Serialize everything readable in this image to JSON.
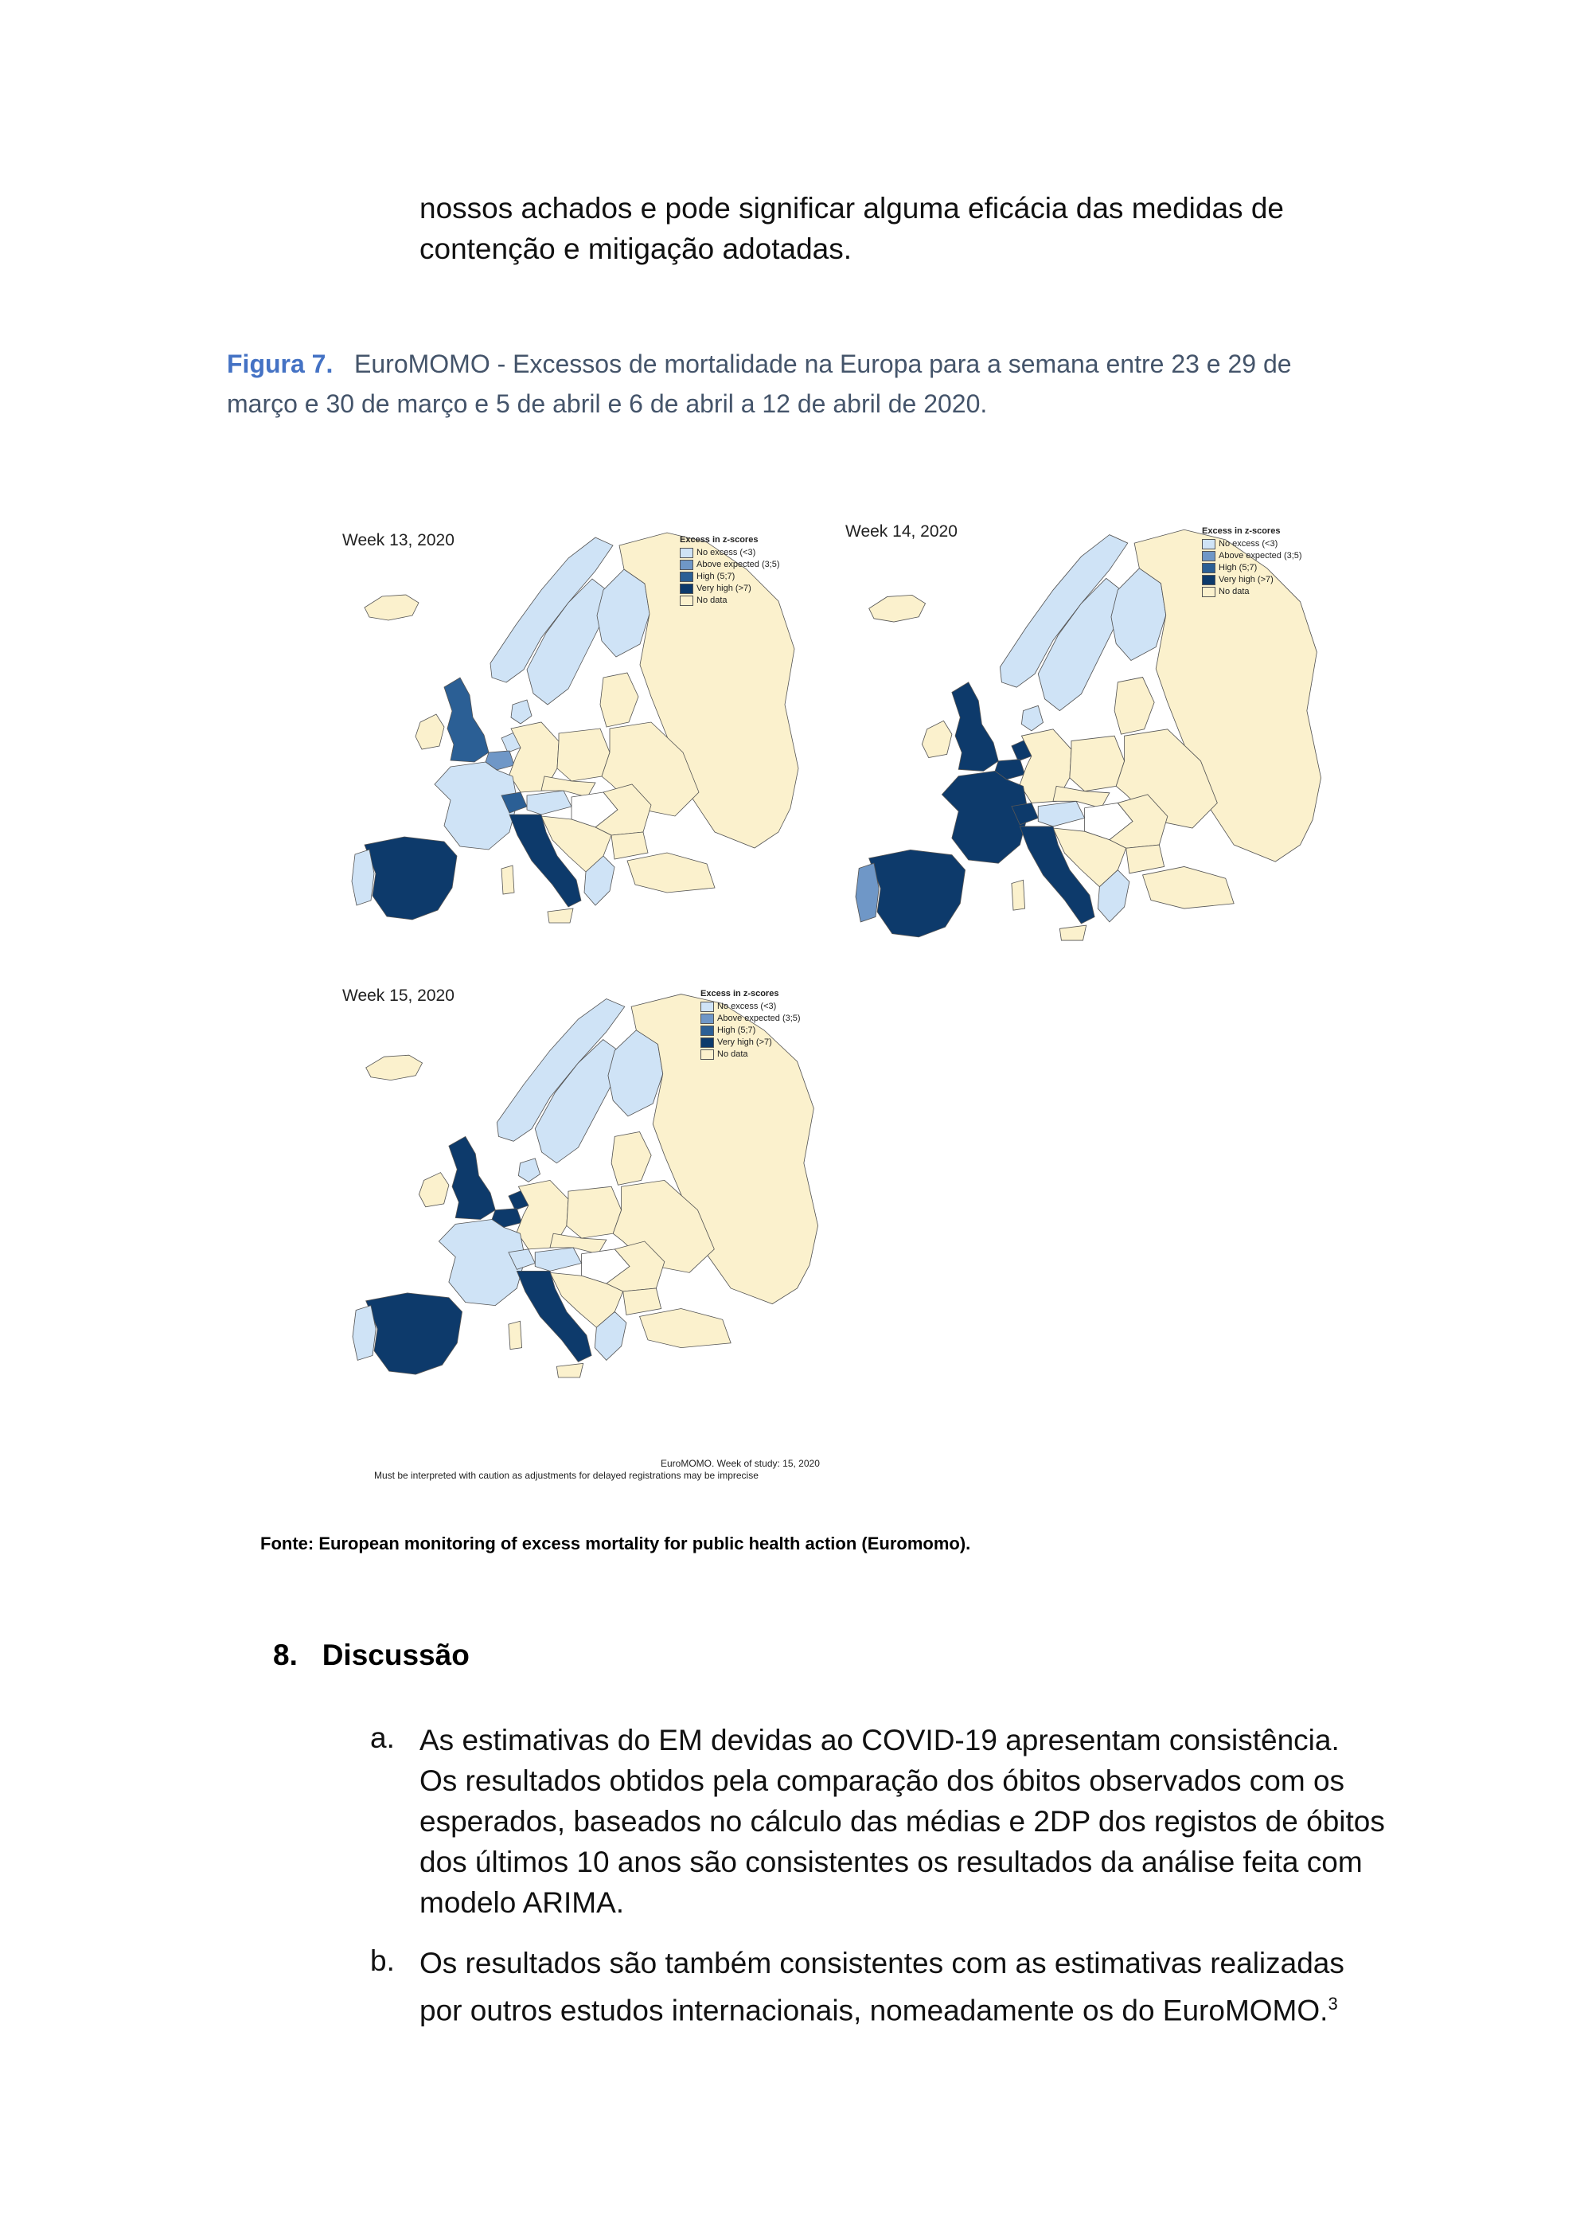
{
  "intro": {
    "lines": [
      "nossos achados e pode significar alguma eficácia das medidas de",
      "contenção e mitigação adotadas."
    ]
  },
  "figure": {
    "label": "Figura 7.",
    "caption_line1": "EuroMOMO - Excessos de mortalidade na Europa para a semana entre 23 e 29 de",
    "caption_line2": "março e 30 de março e 5 de abril e 6 de abril a 12 de abril de 2020.",
    "colors": {
      "no_excess": "#cfe3f6",
      "above_expected": "#6f97c7",
      "high": "#2b5f95",
      "very_high": "#0d3a6b",
      "no_data": "#fbf1cd",
      "none": "#ffffff"
    },
    "legend": {
      "title": "Excess in z-scores",
      "items": [
        {
          "label": "No excess (<3)",
          "key": "no_excess"
        },
        {
          "label": "Above expected (3;5)",
          "key": "above_expected"
        },
        {
          "label": "High (5;7)",
          "key": "high"
        },
        {
          "label": "Very high (>7)",
          "key": "very_high"
        },
        {
          "label": "No data",
          "key": "no_data"
        }
      ]
    },
    "maps": [
      {
        "title": "Week 13, 2020",
        "countries": {
          "iceland": "no_data",
          "ireland": "no_data",
          "uk": "high",
          "norway": "no_excess",
          "sweden": "no_excess",
          "finland": "no_excess",
          "denmark": "no_excess",
          "netherlands": "no_excess",
          "belgium": "above_expected",
          "france": "no_excess",
          "spain": "very_high",
          "portugal": "no_excess",
          "switzerland": "high",
          "italy": "very_high",
          "germany": "no_data",
          "austria": "no_excess",
          "greece": "no_excess",
          "hungary": "none"
        }
      },
      {
        "title": "Week 14, 2020",
        "countries": {
          "iceland": "no_data",
          "ireland": "no_data",
          "uk": "very_high",
          "norway": "no_excess",
          "sweden": "no_excess",
          "finland": "no_excess",
          "denmark": "no_excess",
          "netherlands": "very_high",
          "belgium": "very_high",
          "france": "very_high",
          "spain": "very_high",
          "portugal": "above_expected",
          "switzerland": "very_high",
          "italy": "very_high",
          "germany": "no_data",
          "austria": "no_excess",
          "greece": "no_excess",
          "hungary": "none"
        }
      },
      {
        "title": "Week 15, 2020",
        "countries": {
          "iceland": "no_data",
          "ireland": "no_data",
          "uk": "very_high",
          "norway": "no_excess",
          "sweden": "no_excess",
          "finland": "no_excess",
          "denmark": "no_excess",
          "netherlands": "very_high",
          "belgium": "very_high",
          "france": "no_excess",
          "spain": "very_high",
          "portugal": "no_excess",
          "switzerland": "no_excess",
          "italy": "very_high",
          "germany": "no_data",
          "austria": "no_excess",
          "greece": "no_excess",
          "hungary": "none"
        }
      }
    ],
    "note_week": "EuroMOMO. Week of study: 15, 2020",
    "note_caution": "Must be interpreted with caution as adjustments for delayed registrations may be imprecise"
  },
  "source": "Fonte: European monitoring of excess mortality for public health action (Euromomo).",
  "section": {
    "number": "8.",
    "title": "Discussão"
  },
  "list": [
    {
      "marker": "a.",
      "lines": [
        "As estimativas do EM devidas ao COVID-19 apresentam consistência.",
        "Os resultados obtidos pela comparação dos óbitos observados com os",
        "esperados, baseados no cálculo das médias e 2DP dos registos de óbitos",
        "dos últimos 10 anos são consistentes os resultados da análise feita com",
        "modelo ARIMA."
      ]
    },
    {
      "marker": "b.",
      "lines": [
        "Os resultados são também consistentes com as estimativas realizadas",
        "por outros estudos internacionais, nomeadamente os do EuroMOMO."
      ],
      "superscript": "3"
    }
  ]
}
